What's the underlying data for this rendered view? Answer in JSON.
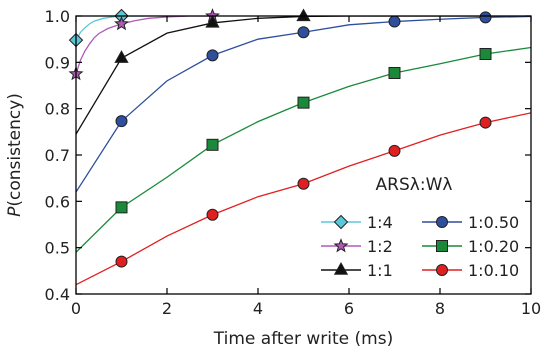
{
  "chart_data": {
    "type": "line",
    "xlabel": "Time after write (ms)",
    "ylabel_italic": "P",
    "ylabel_rest": "(consistency)",
    "xlim": [
      0,
      10
    ],
    "ylim": [
      0.4,
      1.0
    ],
    "x_ticks": [
      "0",
      "2",
      "4",
      "6",
      "8",
      "10"
    ],
    "y_ticks": [
      "0.4",
      "0.5",
      "0.6",
      "0.7",
      "0.8",
      "0.9",
      "1.0"
    ],
    "grid": false,
    "legend_title": "ARSλ:Wλ",
    "legend_position": "lower-right",
    "series": [
      {
        "name": "1:4",
        "color": "#5bc8d8",
        "marker": "diamond",
        "x": [
          0,
          0.1,
          0.2,
          0.3,
          0.4,
          0.6,
          0.8,
          1.0,
          1.2,
          1.5
        ],
        "y": [
          0.948,
          0.965,
          0.975,
          0.983,
          0.989,
          0.995,
          0.998,
          1.0,
          1.0,
          1.0
        ],
        "marker_x": [
          0,
          1
        ],
        "marker_y": [
          0.948,
          1.0
        ]
      },
      {
        "name": "1:2",
        "color": "#b05ab8",
        "marker": "star",
        "x": [
          0,
          0.1,
          0.2,
          0.3,
          0.4,
          0.5,
          0.7,
          1.0,
          1.3,
          1.6,
          2.0,
          2.5,
          3.0
        ],
        "y": [
          0.875,
          0.905,
          0.925,
          0.94,
          0.953,
          0.962,
          0.973,
          0.983,
          0.99,
          0.995,
          0.998,
          1.0,
          1.0
        ],
        "marker_x": [
          0,
          1,
          3
        ],
        "marker_y": [
          0.875,
          0.983,
          1.0
        ]
      },
      {
        "name": "1:1",
        "color": "#111111",
        "marker": "triangle",
        "x": [
          0,
          1,
          2,
          3,
          4,
          5,
          6,
          7,
          8,
          9,
          10
        ],
        "y": [
          0.745,
          0.909,
          0.963,
          0.985,
          0.995,
          0.999,
          1.0,
          1.0,
          1.0,
          1.0,
          1.0
        ],
        "marker_x": [
          1,
          3,
          5
        ],
        "marker_y": [
          0.909,
          0.985,
          0.999
        ]
      },
      {
        "name": "1:0.50",
        "color": "#2d4f9e",
        "marker": "circle",
        "x": [
          0,
          1,
          2,
          3,
          4,
          5,
          6,
          7,
          8,
          9,
          10
        ],
        "y": [
          0.62,
          0.773,
          0.86,
          0.915,
          0.95,
          0.965,
          0.981,
          0.988,
          0.993,
          0.997,
          0.999
        ],
        "marker_x": [
          1,
          3,
          5,
          7,
          9
        ],
        "marker_y": [
          0.773,
          0.915,
          0.965,
          0.988,
          0.997
        ]
      },
      {
        "name": "1:0.20",
        "color": "#1a8a3a",
        "marker": "square",
        "x": [
          0,
          1,
          2,
          3,
          4,
          5,
          6,
          7,
          8,
          9,
          10
        ],
        "y": [
          0.49,
          0.587,
          0.652,
          0.722,
          0.772,
          0.813,
          0.848,
          0.877,
          0.897,
          0.918,
          0.932
        ],
        "marker_x": [
          1,
          3,
          5,
          7,
          9
        ],
        "marker_y": [
          0.587,
          0.722,
          0.813,
          0.877,
          0.918
        ]
      },
      {
        "name": "1:0.10",
        "color": "#e02020",
        "marker": "circle",
        "x": [
          0,
          1,
          2,
          3,
          4,
          5,
          6,
          7,
          8,
          9,
          10
        ],
        "y": [
          0.42,
          0.47,
          0.525,
          0.571,
          0.61,
          0.638,
          0.676,
          0.709,
          0.743,
          0.77,
          0.791
        ],
        "marker_x": [
          1,
          3,
          5,
          7,
          9
        ],
        "marker_y": [
          0.47,
          0.571,
          0.638,
          0.709,
          0.77
        ]
      }
    ]
  }
}
